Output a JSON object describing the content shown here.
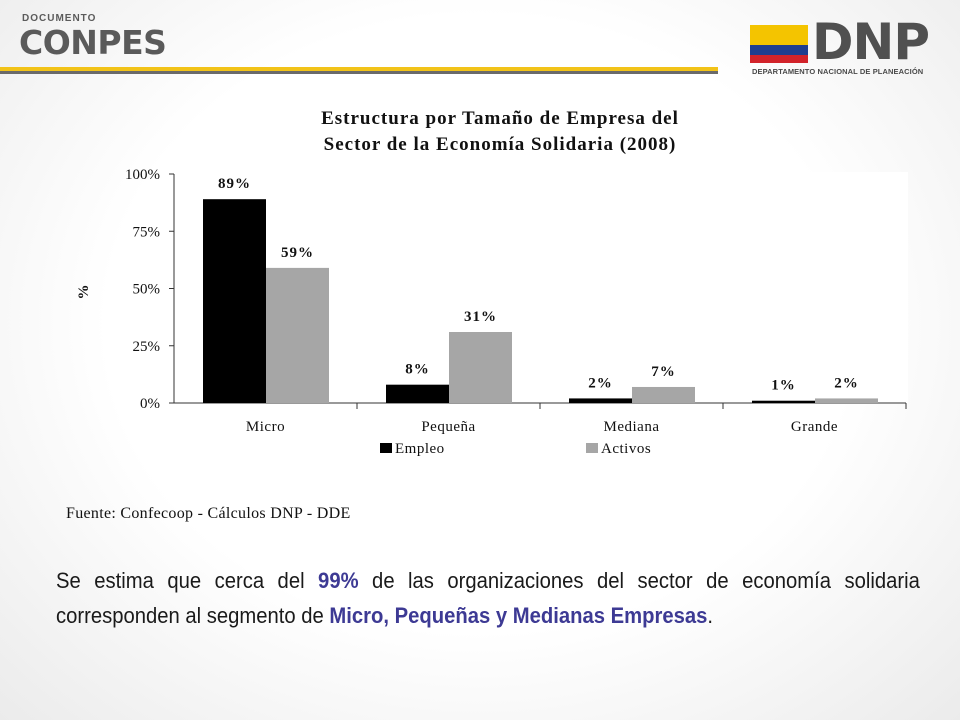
{
  "header": {
    "doc_label": "DOCUMENTO",
    "doc_title": "CONPES",
    "logo_text": "DNP",
    "logo_subtitle": "DEPARTAMENTO NACIONAL DE PLANEACIÓN"
  },
  "colors": {
    "accent_yellow": "#f2c318",
    "flag_yellow": "#f4c400",
    "flag_blue": "#1f3e8f",
    "flag_red": "#d2232a",
    "highlight": "#3d3a94",
    "series_empleo": "#000000",
    "series_activos": "#a6a6a6"
  },
  "chart_data": {
    "type": "bar",
    "title_line1": "Estructura por Tamaño de Empresa  del",
    "title_line2": "Sector de la Economía Solidaria (2008)",
    "ylabel": "%",
    "xlabel": "",
    "ylim": [
      0,
      100
    ],
    "yticks": [
      "0%",
      "25%",
      "50%",
      "75%",
      "100%"
    ],
    "categories": [
      "Micro",
      "Pequeña",
      "Mediana",
      "Grande"
    ],
    "series": [
      {
        "name": "Empleo",
        "values": [
          89,
          8,
          2,
          1
        ],
        "labels": [
          "89%",
          "8%",
          "2%",
          "1%"
        ]
      },
      {
        "name": "Activos",
        "values": [
          59,
          31,
          7,
          2
        ],
        "labels": [
          "59%",
          "31%",
          "7%",
          "2%"
        ]
      }
    ],
    "legend_position": "bottom"
  },
  "source": "Fuente: Confecoop - Cálculos DNP - DDE",
  "body": {
    "p1": "Se estima que cerca del ",
    "pct": "99%",
    "p2": " de las organizaciones del sector de economía solidaria corresponden al segmento de ",
    "segment": "Micro, Pequeñas y Medianas Empresas",
    "p3": "."
  }
}
